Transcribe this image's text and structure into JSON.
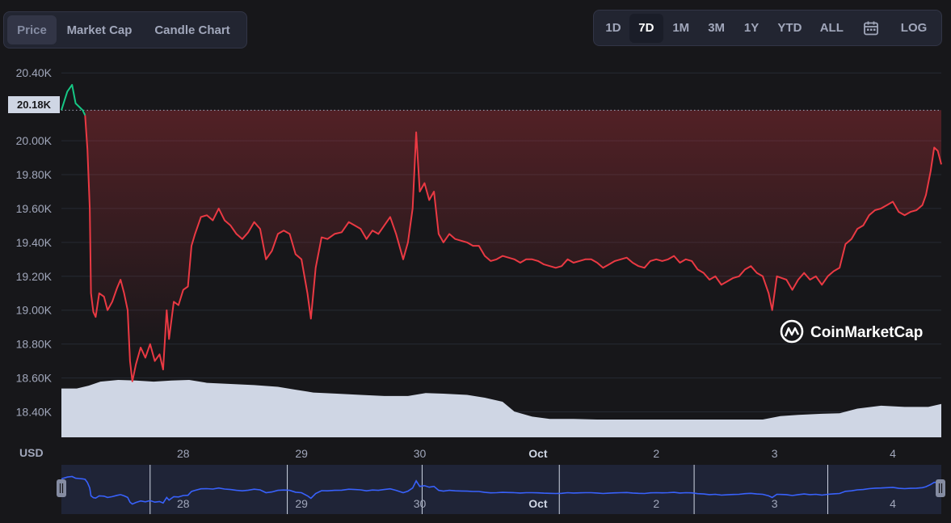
{
  "tabs": [
    {
      "label": "Price",
      "active": true
    },
    {
      "label": "Market Cap",
      "active": false
    },
    {
      "label": "Candle Chart",
      "active": false
    }
  ],
  "ranges": [
    {
      "label": "1D",
      "active": false
    },
    {
      "label": "7D",
      "active": true
    },
    {
      "label": "1M",
      "active": false
    },
    {
      "label": "3M",
      "active": false
    },
    {
      "label": "1Y",
      "active": false
    },
    {
      "label": "YTD",
      "active": false
    },
    {
      "label": "ALL",
      "active": false
    }
  ],
  "calendar_icon": "calendar-icon",
  "log_label": "LOG",
  "currency_label": "USD",
  "watermark": "CoinMarketCap",
  "colors": {
    "background": "#17171a",
    "up_line": "#16c784",
    "down_line": "#ea3943",
    "volume": "#cfd6e4",
    "navigator_line": "#3861fb",
    "navigator_bg": "#1f2437"
  },
  "chart_data": {
    "type": "line",
    "current_price_label": "20.18K",
    "current_price": 20180,
    "y_ticks": [
      "20.40K",
      "20.00K",
      "19.80K",
      "19.60K",
      "19.40K",
      "19.20K",
      "19.00K",
      "18.80K",
      "18.60K",
      "18.40K"
    ],
    "y_tick_values": [
      20400,
      20000,
      19800,
      19600,
      19400,
      19200,
      19000,
      18800,
      18600,
      18400
    ],
    "ylim": [
      18250,
      20420
    ],
    "x_ticks": [
      "28",
      "29",
      "30",
      "Oct",
      "2",
      "3",
      "4"
    ],
    "x_tick_positions": [
      0.5,
      1.5,
      2.5,
      3.5,
      4.5,
      5.5,
      6.5
    ],
    "xlim": [
      -0.53,
      6.91
    ],
    "series": [
      {
        "values": [
          [
            -0.53,
            20180
          ],
          [
            -0.48,
            20290
          ],
          [
            -0.44,
            20330
          ],
          [
            -0.41,
            20220
          ],
          [
            -0.38,
            20200
          ],
          [
            -0.35,
            20180
          ],
          [
            -0.33,
            20150
          ],
          [
            -0.31,
            19950
          ],
          [
            -0.29,
            19600
          ],
          [
            -0.28,
            19100
          ],
          [
            -0.26,
            18990
          ],
          [
            -0.24,
            18960
          ],
          [
            -0.21,
            19100
          ],
          [
            -0.17,
            19080
          ],
          [
            -0.14,
            19000
          ],
          [
            -0.1,
            19050
          ],
          [
            -0.06,
            19130
          ],
          [
            -0.03,
            19180
          ],
          [
            0.0,
            19100
          ],
          [
            0.03,
            19000
          ],
          [
            0.05,
            18700
          ],
          [
            0.07,
            18580
          ],
          [
            0.1,
            18680
          ],
          [
            0.14,
            18780
          ],
          [
            0.18,
            18720
          ],
          [
            0.22,
            18800
          ],
          [
            0.26,
            18700
          ],
          [
            0.3,
            18740
          ],
          [
            0.33,
            18650
          ],
          [
            0.36,
            19000
          ],
          [
            0.38,
            18830
          ],
          [
            0.42,
            19050
          ],
          [
            0.46,
            19030
          ],
          [
            0.5,
            19120
          ],
          [
            0.54,
            19140
          ],
          [
            0.57,
            19380
          ],
          [
            0.6,
            19450
          ],
          [
            0.65,
            19550
          ],
          [
            0.7,
            19560
          ],
          [
            0.75,
            19530
          ],
          [
            0.8,
            19600
          ],
          [
            0.85,
            19530
          ],
          [
            0.9,
            19500
          ],
          [
            0.95,
            19450
          ],
          [
            1.0,
            19420
          ],
          [
            1.05,
            19460
          ],
          [
            1.1,
            19520
          ],
          [
            1.15,
            19480
          ],
          [
            1.2,
            19300
          ],
          [
            1.25,
            19350
          ],
          [
            1.3,
            19450
          ],
          [
            1.35,
            19470
          ],
          [
            1.4,
            19450
          ],
          [
            1.45,
            19330
          ],
          [
            1.5,
            19300
          ],
          [
            1.55,
            19100
          ],
          [
            1.58,
            18950
          ],
          [
            1.62,
            19250
          ],
          [
            1.67,
            19430
          ],
          [
            1.72,
            19420
          ],
          [
            1.78,
            19450
          ],
          [
            1.84,
            19460
          ],
          [
            1.9,
            19520
          ],
          [
            1.95,
            19500
          ],
          [
            2.0,
            19480
          ],
          [
            2.05,
            19420
          ],
          [
            2.1,
            19470
          ],
          [
            2.15,
            19450
          ],
          [
            2.2,
            19500
          ],
          [
            2.25,
            19550
          ],
          [
            2.3,
            19450
          ],
          [
            2.36,
            19300
          ],
          [
            2.4,
            19400
          ],
          [
            2.44,
            19600
          ],
          [
            2.47,
            20050
          ],
          [
            2.5,
            19700
          ],
          [
            2.54,
            19750
          ],
          [
            2.58,
            19650
          ],
          [
            2.62,
            19700
          ],
          [
            2.66,
            19450
          ],
          [
            2.7,
            19400
          ],
          [
            2.75,
            19450
          ],
          [
            2.8,
            19420
          ],
          [
            2.85,
            19410
          ],
          [
            2.9,
            19400
          ],
          [
            2.95,
            19380
          ],
          [
            3.0,
            19380
          ],
          [
            3.05,
            19320
          ],
          [
            3.1,
            19290
          ],
          [
            3.15,
            19300
          ],
          [
            3.2,
            19320
          ],
          [
            3.25,
            19310
          ],
          [
            3.3,
            19300
          ],
          [
            3.35,
            19280
          ],
          [
            3.4,
            19300
          ],
          [
            3.45,
            19300
          ],
          [
            3.5,
            19290
          ],
          [
            3.55,
            19270
          ],
          [
            3.6,
            19260
          ],
          [
            3.65,
            19250
          ],
          [
            3.7,
            19260
          ],
          [
            3.75,
            19300
          ],
          [
            3.8,
            19280
          ],
          [
            3.85,
            19290
          ],
          [
            3.9,
            19300
          ],
          [
            3.95,
            19300
          ],
          [
            4.0,
            19280
          ],
          [
            4.05,
            19250
          ],
          [
            4.1,
            19270
          ],
          [
            4.15,
            19290
          ],
          [
            4.2,
            19300
          ],
          [
            4.25,
            19310
          ],
          [
            4.3,
            19280
          ],
          [
            4.35,
            19260
          ],
          [
            4.4,
            19250
          ],
          [
            4.45,
            19290
          ],
          [
            4.5,
            19300
          ],
          [
            4.55,
            19290
          ],
          [
            4.6,
            19300
          ],
          [
            4.65,
            19320
          ],
          [
            4.7,
            19280
          ],
          [
            4.75,
            19300
          ],
          [
            4.8,
            19290
          ],
          [
            4.85,
            19240
          ],
          [
            4.9,
            19220
          ],
          [
            4.95,
            19180
          ],
          [
            5.0,
            19200
          ],
          [
            5.05,
            19150
          ],
          [
            5.1,
            19170
          ],
          [
            5.15,
            19190
          ],
          [
            5.2,
            19200
          ],
          [
            5.25,
            19240
          ],
          [
            5.3,
            19260
          ],
          [
            5.35,
            19220
          ],
          [
            5.4,
            19200
          ],
          [
            5.45,
            19100
          ],
          [
            5.48,
            19000
          ],
          [
            5.52,
            19200
          ],
          [
            5.56,
            19190
          ],
          [
            5.6,
            19180
          ],
          [
            5.65,
            19120
          ],
          [
            5.7,
            19180
          ],
          [
            5.75,
            19220
          ],
          [
            5.8,
            19180
          ],
          [
            5.85,
            19200
          ],
          [
            5.9,
            19150
          ],
          [
            5.95,
            19200
          ],
          [
            6.0,
            19230
          ],
          [
            6.05,
            19250
          ],
          [
            6.1,
            19390
          ],
          [
            6.15,
            19420
          ],
          [
            6.2,
            19480
          ],
          [
            6.25,
            19500
          ],
          [
            6.3,
            19560
          ],
          [
            6.35,
            19590
          ],
          [
            6.4,
            19600
          ],
          [
            6.45,
            19620
          ],
          [
            6.5,
            19640
          ],
          [
            6.55,
            19580
          ],
          [
            6.6,
            19560
          ],
          [
            6.65,
            19580
          ],
          [
            6.7,
            19590
          ],
          [
            6.75,
            19620
          ],
          [
            6.78,
            19680
          ],
          [
            6.82,
            19820
          ],
          [
            6.85,
            19960
          ],
          [
            6.88,
            19940
          ],
          [
            6.91,
            19860
          ]
        ]
      }
    ],
    "volume": {
      "ylim": [
        0,
        1
      ],
      "values": [
        [
          -0.53,
          0.85
        ],
        [
          -0.4,
          0.85
        ],
        [
          -0.3,
          0.9
        ],
        [
          -0.2,
          0.97
        ],
        [
          -0.05,
          1.0
        ],
        [
          0.1,
          0.99
        ],
        [
          0.25,
          0.97
        ],
        [
          0.4,
          0.99
        ],
        [
          0.55,
          1.0
        ],
        [
          0.7,
          0.95
        ],
        [
          0.9,
          0.93
        ],
        [
          1.1,
          0.91
        ],
        [
          1.3,
          0.88
        ],
        [
          1.45,
          0.83
        ],
        [
          1.6,
          0.78
        ],
        [
          1.8,
          0.76
        ],
        [
          2.0,
          0.74
        ],
        [
          2.2,
          0.72
        ],
        [
          2.4,
          0.72
        ],
        [
          2.55,
          0.77
        ],
        [
          2.7,
          0.76
        ],
        [
          2.9,
          0.74
        ],
        [
          3.05,
          0.69
        ],
        [
          3.2,
          0.62
        ],
        [
          3.3,
          0.45
        ],
        [
          3.45,
          0.36
        ],
        [
          3.6,
          0.32
        ],
        [
          3.8,
          0.32
        ],
        [
          4.0,
          0.31
        ],
        [
          4.2,
          0.31
        ],
        [
          4.4,
          0.31
        ],
        [
          4.6,
          0.31
        ],
        [
          4.8,
          0.31
        ],
        [
          5.0,
          0.31
        ],
        [
          5.2,
          0.31
        ],
        [
          5.4,
          0.31
        ],
        [
          5.55,
          0.37
        ],
        [
          5.7,
          0.39
        ],
        [
          5.9,
          0.41
        ],
        [
          6.05,
          0.42
        ],
        [
          6.2,
          0.5
        ],
        [
          6.4,
          0.55
        ],
        [
          6.6,
          0.53
        ],
        [
          6.8,
          0.53
        ],
        [
          6.91,
          0.58
        ]
      ]
    }
  },
  "navigator": {
    "labels": [
      "28",
      "29",
      "30",
      "Oct",
      "2",
      "3",
      "4"
    ],
    "label_positions": [
      0.5,
      1.5,
      2.5,
      3.5,
      4.5,
      5.5,
      6.5
    ],
    "gridlines": [
      0.22,
      1.38,
      2.52,
      3.68,
      4.82,
      5.95
    ]
  }
}
